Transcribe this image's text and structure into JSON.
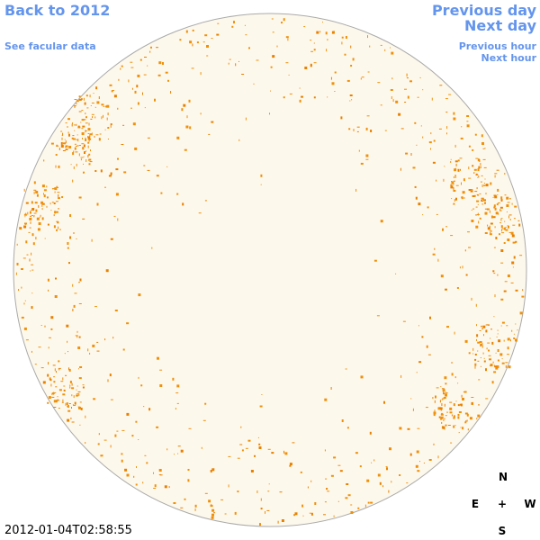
{
  "links": {
    "back": "Back to 2012",
    "facular": "See facular data",
    "prev_day": "Previous day",
    "next_day": "Next day",
    "prev_hour": "Previous hour",
    "next_hour": "Next hour"
  },
  "timestamp": "2012-01-04T02:58:55",
  "compass": {
    "north": "N",
    "east": "E",
    "center": "+",
    "west": "W",
    "south": "S"
  }
}
